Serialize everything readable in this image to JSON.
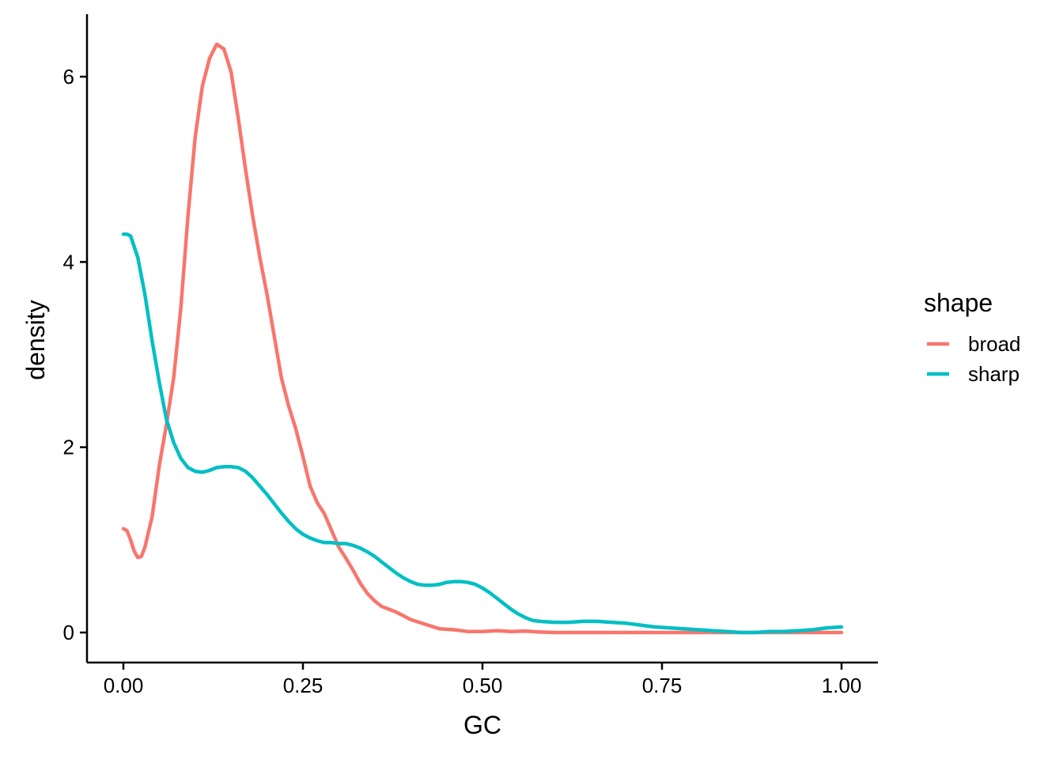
{
  "chart_data": {
    "type": "line",
    "title": "",
    "xlabel": "GC",
    "ylabel": "density",
    "xlim": [
      0.0,
      1.0
    ],
    "ylim": [
      0,
      6.35
    ],
    "xticks": [
      "0.00",
      "0.25",
      "0.50",
      "0.75",
      "1.00"
    ],
    "xtick_values": [
      0,
      0.25,
      0.5,
      0.75,
      1.0
    ],
    "yticks": [
      "0",
      "2",
      "4",
      "6"
    ],
    "ytick_values": [
      0,
      2,
      4,
      6
    ],
    "grid": false,
    "legend": {
      "title": "shape",
      "placement": "right"
    },
    "series": [
      {
        "name": "broad",
        "color": "#F8766D",
        "points": [
          [
            0.0,
            1.12
          ],
          [
            0.005,
            1.1
          ],
          [
            0.01,
            1.0
          ],
          [
            0.015,
            0.88
          ],
          [
            0.02,
            0.81
          ],
          [
            0.025,
            0.82
          ],
          [
            0.03,
            0.92
          ],
          [
            0.04,
            1.25
          ],
          [
            0.05,
            1.8
          ],
          [
            0.06,
            2.25
          ],
          [
            0.07,
            2.75
          ],
          [
            0.08,
            3.5
          ],
          [
            0.09,
            4.5
          ],
          [
            0.1,
            5.35
          ],
          [
            0.11,
            5.9
          ],
          [
            0.12,
            6.2
          ],
          [
            0.13,
            6.35
          ],
          [
            0.14,
            6.3
          ],
          [
            0.15,
            6.05
          ],
          [
            0.16,
            5.55
          ],
          [
            0.17,
            5.0
          ],
          [
            0.18,
            4.5
          ],
          [
            0.19,
            4.05
          ],
          [
            0.2,
            3.65
          ],
          [
            0.21,
            3.2
          ],
          [
            0.22,
            2.75
          ],
          [
            0.23,
            2.45
          ],
          [
            0.24,
            2.2
          ],
          [
            0.25,
            1.9
          ],
          [
            0.26,
            1.58
          ],
          [
            0.27,
            1.4
          ],
          [
            0.28,
            1.28
          ],
          [
            0.29,
            1.1
          ],
          [
            0.3,
            0.92
          ],
          [
            0.31,
            0.8
          ],
          [
            0.32,
            0.67
          ],
          [
            0.33,
            0.53
          ],
          [
            0.34,
            0.42
          ],
          [
            0.35,
            0.34
          ],
          [
            0.36,
            0.28
          ],
          [
            0.37,
            0.25
          ],
          [
            0.38,
            0.22
          ],
          [
            0.39,
            0.18
          ],
          [
            0.4,
            0.14
          ],
          [
            0.42,
            0.09
          ],
          [
            0.44,
            0.04
          ],
          [
            0.46,
            0.03
          ],
          [
            0.48,
            0.01
          ],
          [
            0.5,
            0.01
          ],
          [
            0.52,
            0.02
          ],
          [
            0.54,
            0.01
          ],
          [
            0.56,
            0.015
          ],
          [
            0.58,
            0.005
          ],
          [
            0.6,
            0.0
          ],
          [
            0.7,
            0.0
          ],
          [
            0.8,
            0.0
          ],
          [
            0.9,
            0.0
          ],
          [
            1.0,
            0.0
          ]
        ]
      },
      {
        "name": "sharp",
        "color": "#00BFC4",
        "points": [
          [
            0.0,
            4.3
          ],
          [
            0.005,
            4.3
          ],
          [
            0.01,
            4.28
          ],
          [
            0.02,
            4.05
          ],
          [
            0.03,
            3.65
          ],
          [
            0.04,
            3.15
          ],
          [
            0.05,
            2.7
          ],
          [
            0.06,
            2.3
          ],
          [
            0.07,
            2.05
          ],
          [
            0.08,
            1.88
          ],
          [
            0.09,
            1.78
          ],
          [
            0.1,
            1.74
          ],
          [
            0.11,
            1.73
          ],
          [
            0.12,
            1.75
          ],
          [
            0.13,
            1.78
          ],
          [
            0.14,
            1.79
          ],
          [
            0.15,
            1.79
          ],
          [
            0.16,
            1.78
          ],
          [
            0.17,
            1.74
          ],
          [
            0.18,
            1.67
          ],
          [
            0.19,
            1.58
          ],
          [
            0.2,
            1.49
          ],
          [
            0.21,
            1.39
          ],
          [
            0.22,
            1.29
          ],
          [
            0.23,
            1.2
          ],
          [
            0.24,
            1.12
          ],
          [
            0.25,
            1.06
          ],
          [
            0.26,
            1.02
          ],
          [
            0.27,
            0.99
          ],
          [
            0.28,
            0.97
          ],
          [
            0.29,
            0.97
          ],
          [
            0.3,
            0.96
          ],
          [
            0.31,
            0.96
          ],
          [
            0.32,
            0.94
          ],
          [
            0.33,
            0.91
          ],
          [
            0.34,
            0.87
          ],
          [
            0.35,
            0.82
          ],
          [
            0.36,
            0.76
          ],
          [
            0.37,
            0.7
          ],
          [
            0.38,
            0.64
          ],
          [
            0.39,
            0.59
          ],
          [
            0.4,
            0.55
          ],
          [
            0.41,
            0.52
          ],
          [
            0.42,
            0.51
          ],
          [
            0.43,
            0.51
          ],
          [
            0.44,
            0.52
          ],
          [
            0.45,
            0.54
          ],
          [
            0.46,
            0.55
          ],
          [
            0.47,
            0.55
          ],
          [
            0.48,
            0.54
          ],
          [
            0.49,
            0.52
          ],
          [
            0.5,
            0.48
          ],
          [
            0.51,
            0.43
          ],
          [
            0.52,
            0.37
          ],
          [
            0.53,
            0.31
          ],
          [
            0.54,
            0.25
          ],
          [
            0.55,
            0.2
          ],
          [
            0.56,
            0.16
          ],
          [
            0.57,
            0.13
          ],
          [
            0.58,
            0.12
          ],
          [
            0.6,
            0.11
          ],
          [
            0.62,
            0.11
          ],
          [
            0.64,
            0.12
          ],
          [
            0.66,
            0.12
          ],
          [
            0.68,
            0.11
          ],
          [
            0.7,
            0.1
          ],
          [
            0.72,
            0.08
          ],
          [
            0.74,
            0.06
          ],
          [
            0.76,
            0.05
          ],
          [
            0.78,
            0.04
          ],
          [
            0.8,
            0.03
          ],
          [
            0.82,
            0.02
          ],
          [
            0.84,
            0.01
          ],
          [
            0.86,
            0.0
          ],
          [
            0.88,
            0.0
          ],
          [
            0.9,
            0.01
          ],
          [
            0.92,
            0.01
          ],
          [
            0.94,
            0.02
          ],
          [
            0.96,
            0.03
          ],
          [
            0.98,
            0.05
          ],
          [
            1.0,
            0.06
          ]
        ]
      }
    ]
  }
}
